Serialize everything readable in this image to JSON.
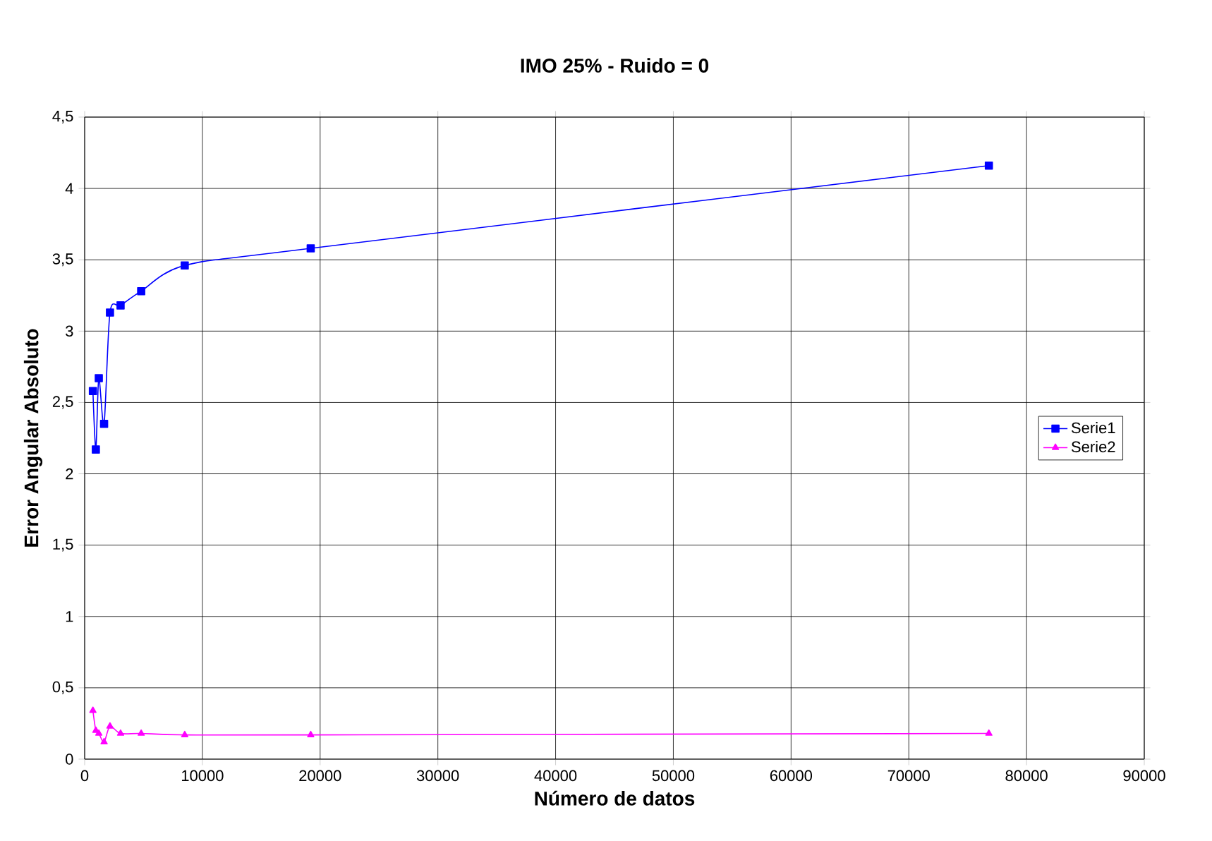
{
  "chart_data": {
    "type": "line",
    "title": "IMO 25% - Ruido = 0",
    "xlabel": "Número de datos",
    "ylabel": "Error Angular Absoluto",
    "x": [
      700,
      950,
      1200,
      1650,
      2150,
      3050,
      4800,
      8500,
      19200,
      76800
    ],
    "series": [
      {
        "name": "Serie1",
        "color": "#0000ff",
        "marker": "square",
        "values": [
          2.58,
          2.17,
          2.67,
          2.35,
          3.13,
          3.18,
          3.28,
          3.46,
          3.58,
          4.16
        ]
      },
      {
        "name": "Serie2",
        "color": "#ff00ff",
        "marker": "triangle",
        "values": [
          0.34,
          0.2,
          0.18,
          0.12,
          0.23,
          0.18,
          0.18,
          0.17,
          0.17,
          0.18
        ]
      }
    ],
    "xlim": [
      0,
      90000
    ],
    "xticks": [
      0,
      10000,
      20000,
      30000,
      40000,
      50000,
      60000,
      70000,
      80000,
      90000
    ],
    "ylim": [
      0,
      4.5
    ],
    "yticks": [
      0,
      {
        "value": 0.5,
        "label": "0,5"
      },
      1,
      {
        "value": 1.5,
        "label": "1,5"
      },
      2,
      {
        "value": 2.5,
        "label": "2,5"
      },
      3,
      {
        "value": 3.5,
        "label": "3,5"
      },
      4,
      {
        "value": 4.5,
        "label": "4,5"
      }
    ],
    "grid": true,
    "legend": "right",
    "line_style": "solid"
  }
}
